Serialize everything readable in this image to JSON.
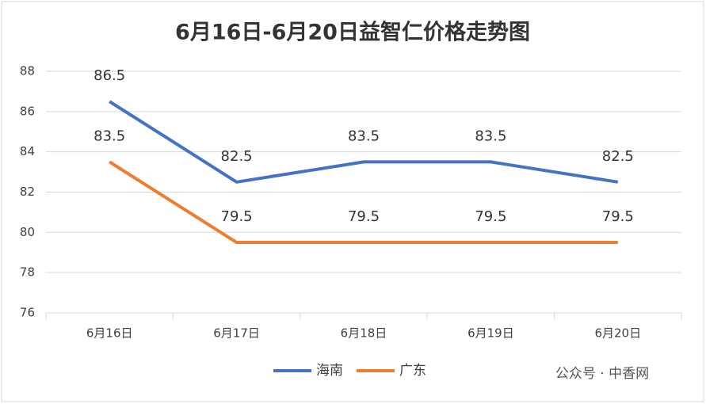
{
  "chart_data": {
    "type": "line",
    "title": "6月16日-6月20日益智仁价格走势图",
    "categories": [
      "6月16日",
      "6月17日",
      "6月18日",
      "6月19日",
      "6月20日"
    ],
    "series": [
      {
        "name": "海南",
        "color": "#4472c4",
        "values": [
          86.5,
          82.5,
          83.5,
          83.5,
          82.5
        ]
      },
      {
        "name": "广东",
        "color": "#ed7d31",
        "values": [
          83.5,
          79.5,
          79.5,
          79.5,
          79.5
        ]
      }
    ],
    "ylim": [
      76,
      88
    ],
    "yticks": [
      76,
      78,
      80,
      82,
      84,
      86,
      88
    ],
    "grid": true,
    "legend": "bottom",
    "watermark": "公众号 · 中香网"
  }
}
